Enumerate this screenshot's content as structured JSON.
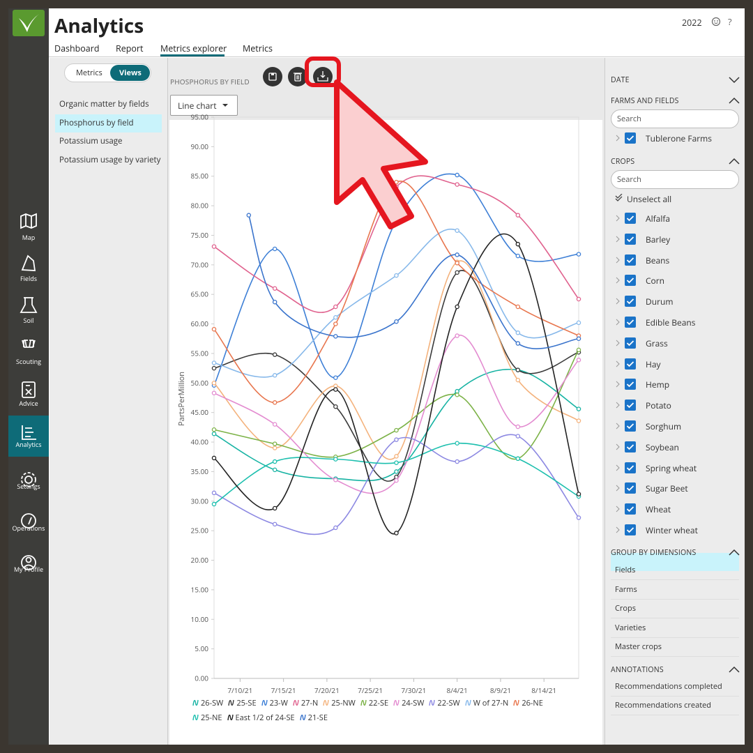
{
  "header": {
    "title": "Analytics",
    "year": "2022",
    "help": "?"
  },
  "tabs": [
    "Dashboard",
    "Report",
    "Metrics explorer",
    "Metrics"
  ],
  "nav": [
    "Map",
    "Fields",
    "Soil",
    "Scouting",
    "Advice",
    "Analytics",
    "Settings",
    "Operations",
    "My Profile"
  ],
  "views_panel": {
    "toggle": [
      "Metrics",
      "Views"
    ],
    "items": [
      "Organic matter by fields",
      "Phosphorus by field",
      "Potassium usage",
      "Potassium usage by variety"
    ]
  },
  "toolbar": {
    "title": "PHOSPHORUS BY FIELD",
    "chart_type": "Line chart"
  },
  "chart_data": {
    "type": "line",
    "ylabel": "PartsPerMillion",
    "x": [
      "7/7/21",
      "7/14/21",
      "7/21/21",
      "7/28/21",
      "8/4/21",
      "8/11/21",
      "8/18/21"
    ],
    "xlim": [
      "7/7/21",
      "8/18/21"
    ],
    "xticks": [
      "7/10/21",
      "7/15/21",
      "7/20/21",
      "7/25/21",
      "7/30/21",
      "8/4/21",
      "8/9/21",
      "8/14/21"
    ],
    "ylim": [
      0,
      95
    ],
    "yticks": [
      {
        "value": 0,
        "label": "0.00"
      },
      {
        "value": 5,
        "label": "5.00"
      },
      {
        "value": 10,
        "label": "10.00"
      },
      {
        "value": 15,
        "label": "15.00"
      },
      {
        "value": 20,
        "label": "20.00"
      },
      {
        "value": 25,
        "label": "25.00"
      },
      {
        "value": 30,
        "label": "30.00"
      },
      {
        "value": 35,
        "label": "35.00"
      },
      {
        "value": 40,
        "label": "40.00"
      },
      {
        "value": 45,
        "label": "45.00"
      },
      {
        "value": 50,
        "label": "50.00"
      },
      {
        "value": 55,
        "label": "55.00"
      },
      {
        "value": 60,
        "label": "60.00"
      },
      {
        "value": 65,
        "label": "65.00"
      },
      {
        "value": 70,
        "label": "70.00"
      },
      {
        "value": 75,
        "label": "75.00"
      },
      {
        "value": 80,
        "label": "80.00"
      },
      {
        "value": 85,
        "label": "85.00"
      },
      {
        "value": 90,
        "label": "90.00"
      },
      {
        "value": 95,
        "label": "95.00"
      }
    ],
    "grid": false,
    "series": [
      {
        "name": "26-SW",
        "color": "#17b3a3",
        "values": [
          41.4,
          35.3,
          33.8,
          35.0,
          48.6,
          52.2,
          45.6
        ]
      },
      {
        "name": "25-SE",
        "color": "#3a3a3a",
        "values": [
          52.5,
          54.8,
          46.0,
          34.1,
          68.7,
          52.2,
          55.2
        ]
      },
      {
        "name": "23-W",
        "color": "#3d7fd6",
        "values": [
          49.6,
          72.7,
          50.9,
          77.5,
          85.2,
          71.5,
          71.8
        ]
      },
      {
        "name": "27-N",
        "color": "#e0628e",
        "values": [
          73.1,
          66.0,
          62.9,
          83.2,
          83.6,
          78.4,
          64.2
        ]
      },
      {
        "name": "25-NW",
        "color": "#f4b27c",
        "values": [
          50.0,
          39.0,
          49.5,
          37.6,
          70.5,
          50.5,
          43.6
        ]
      },
      {
        "name": "22-SE",
        "color": "#7cb247",
        "values": [
          42.1,
          39.7,
          37.5,
          42.0,
          48.0,
          37.2,
          55.6
        ]
      },
      {
        "name": "24-SW",
        "color": "#e38bd0",
        "values": [
          48.3,
          43.0,
          33.6,
          33.5,
          58.0,
          42.6,
          53.9
        ]
      },
      {
        "name": "22-SW",
        "color": "#8c88e2",
        "values": [
          31.4,
          26.1,
          25.5,
          40.4,
          36.7,
          41.0,
          27.2
        ]
      },
      {
        "name": "W of 27-N",
        "color": "#86b8ea",
        "values": [
          53.4,
          51.3,
          61.1,
          68.2,
          75.8,
          58.5,
          60.2
        ]
      },
      {
        "name": "26-NE",
        "color": "#e8764e",
        "values": [
          59.1,
          46.7,
          60.0,
          84.0,
          70.3,
          62.9,
          58.0
        ]
      },
      {
        "name": "25-NE",
        "color": "#1cbfae",
        "values": [
          29.5,
          36.7,
          37.1,
          36.5,
          39.8,
          37.2,
          30.8
        ]
      },
      {
        "name": "East 1/2 of 24-SE",
        "color": "#222222",
        "values": [
          37.3,
          28.8,
          48.9,
          24.6,
          62.9,
          73.5,
          31.2
        ]
      },
      {
        "name": "21-SE",
        "color": "#3a74cc",
        "x": [
          "7/11/21",
          "7/14/21",
          "7/21/21",
          "7/28/21",
          "8/4/21",
          "8/11/21",
          "8/18/21"
        ],
        "values": [
          78.4,
          63.7,
          57.9,
          60.4,
          71.7,
          56.7,
          57.5
        ]
      }
    ]
  },
  "filters": {
    "date_title": "DATE",
    "farms_title": "FARMS AND FIELDS",
    "farms_search": "Search",
    "farms": [
      "Tublerone Farms"
    ],
    "crops_title": "CROPS",
    "crops_search": "Search",
    "unselect": "Unselect all",
    "crops": [
      "Alfalfa",
      "Barley",
      "Beans",
      "Corn",
      "Durum",
      "Edible Beans",
      "Grass",
      "Hay",
      "Hemp",
      "Potato",
      "Sorghum",
      "Soybean",
      "Spring wheat",
      "Sugar Beet",
      "Wheat",
      "Winter wheat"
    ],
    "group_title": "GROUP BY DIMENSIONS",
    "groups": [
      "Fields",
      "Farms",
      "Crops",
      "Varieties",
      "Master crops"
    ],
    "annotations_title": "ANNOTATIONS",
    "annotations": [
      "Recommendations completed",
      "Recommendations created"
    ]
  }
}
